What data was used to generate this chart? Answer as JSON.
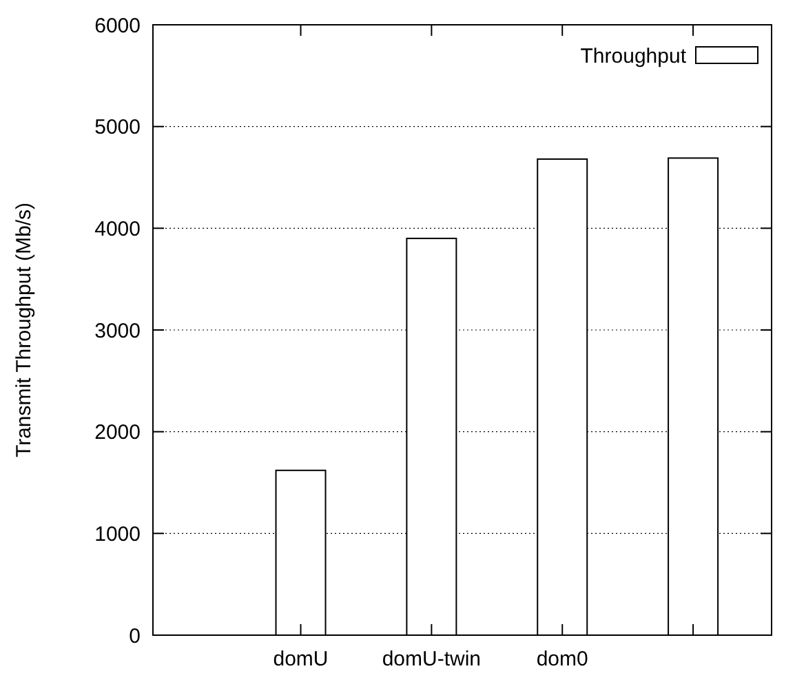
{
  "chart_data": {
    "type": "bar",
    "ylabel": "Transmit Throughput (Mb/s)",
    "categories": [
      "domU",
      "domU-twin",
      "dom0",
      null
    ],
    "series": [
      {
        "name": "Throughput",
        "color": "#ffffff",
        "values": [
          1620,
          3900,
          4680,
          4690
        ]
      }
    ],
    "ylim": [
      0,
      6000
    ],
    "yticks": [
      0,
      1000,
      2000,
      3000,
      4000,
      5000,
      6000
    ],
    "grid": "y",
    "legend": "top right"
  }
}
